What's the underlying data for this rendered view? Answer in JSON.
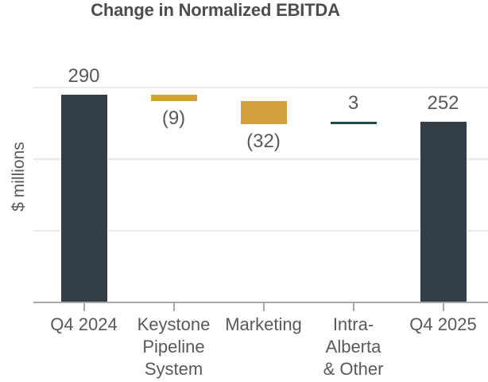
{
  "chart": {
    "title": "Change in Normalized EBITDA",
    "y_axis_label": "$ millions",
    "chart_data": {
      "type": "bar",
      "subtype": "waterfall",
      "title": "Change in Normalized EBITDA",
      "xlabel": "",
      "ylabel": "$ millions",
      "ylim": [
        0,
        300
      ],
      "gridlines_y": [
        100,
        200,
        300
      ],
      "grid": "on",
      "legend": "none",
      "categories": [
        "Q4 2024",
        "Keystone Pipeline System",
        "Marketing",
        "Intra-Alberta & Other",
        "Q4 2025"
      ],
      "category_display": [
        "Q4 2024",
        "Keystone\nPipeline\nSystem",
        "Marketing",
        "Intra-\nAlberta\n& Other",
        "Q4 2025"
      ],
      "values": [
        290,
        -9,
        -32,
        3,
        252
      ],
      "roles": [
        "total",
        "decrease",
        "decrease",
        "increase",
        "total"
      ],
      "data_labels": [
        "290",
        "(9)",
        "(32)",
        "3",
        "252"
      ],
      "label_positions": [
        "above",
        "below",
        "below",
        "above",
        "above"
      ],
      "running_totals": [
        290,
        281,
        249,
        252,
        252
      ]
    },
    "colors": {
      "total_bar": "#333E48",
      "decrease_bar": "#D2A13B",
      "increase_bar": "#1C4A44",
      "grid_line": "#E9EAEB",
      "axis_line": "#A6A9AC",
      "label_text": "#58595B",
      "title_text": "#4C4D4F"
    }
  }
}
